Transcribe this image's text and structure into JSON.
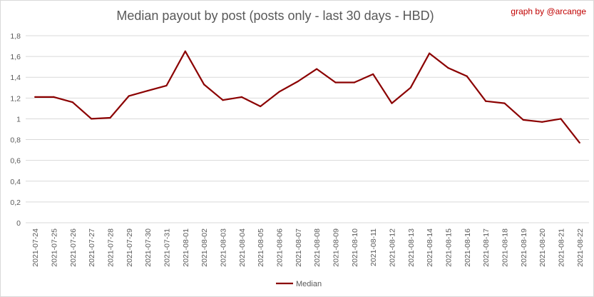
{
  "chart_data": {
    "type": "line",
    "title": "Median payout by post (posts only - last 30 days - HBD)",
    "credit": "graph by @arcange",
    "xlabel": "",
    "ylabel": "",
    "ylim": [
      0,
      1.8
    ],
    "y_ticks": [
      "0",
      "0,2",
      "0,4",
      "0,6",
      "0,8",
      "1",
      "1,2",
      "1,4",
      "1,6",
      "1,8"
    ],
    "grid": true,
    "legend_position": "bottom",
    "categories": [
      "2021-07-24",
      "2021-07-25",
      "2021-07-26",
      "2021-07-27",
      "2021-07-28",
      "2021-07-29",
      "2021-07-30",
      "2021-07-31",
      "2021-08-01",
      "2021-08-02",
      "2021-08-03",
      "2021-08-04",
      "2021-08-05",
      "2021-08-06",
      "2021-08-07",
      "2021-08-08",
      "2021-08-09",
      "2021-08-10",
      "2021-08-11",
      "2021-08-12",
      "2021-08-13",
      "2021-08-14",
      "2021-08-15",
      "2021-08-16",
      "2021-08-17",
      "2021-08-18",
      "2021-08-19",
      "2021-08-20",
      "2021-08-21",
      "2021-08-22"
    ],
    "series": [
      {
        "name": "Median",
        "color": "#8b0000",
        "values": [
          1.21,
          1.21,
          1.16,
          1.0,
          1.01,
          1.22,
          1.27,
          1.32,
          1.65,
          1.33,
          1.18,
          1.21,
          1.12,
          1.26,
          1.36,
          1.48,
          1.35,
          1.35,
          1.43,
          1.15,
          1.3,
          1.63,
          1.49,
          1.41,
          1.17,
          1.15,
          0.99,
          0.97,
          1.0,
          0.77
        ]
      }
    ],
    "colors": {
      "title": "#595959",
      "credit": "#c00000",
      "gridline": "#d9d9d9",
      "axis_text": "#595959"
    }
  }
}
